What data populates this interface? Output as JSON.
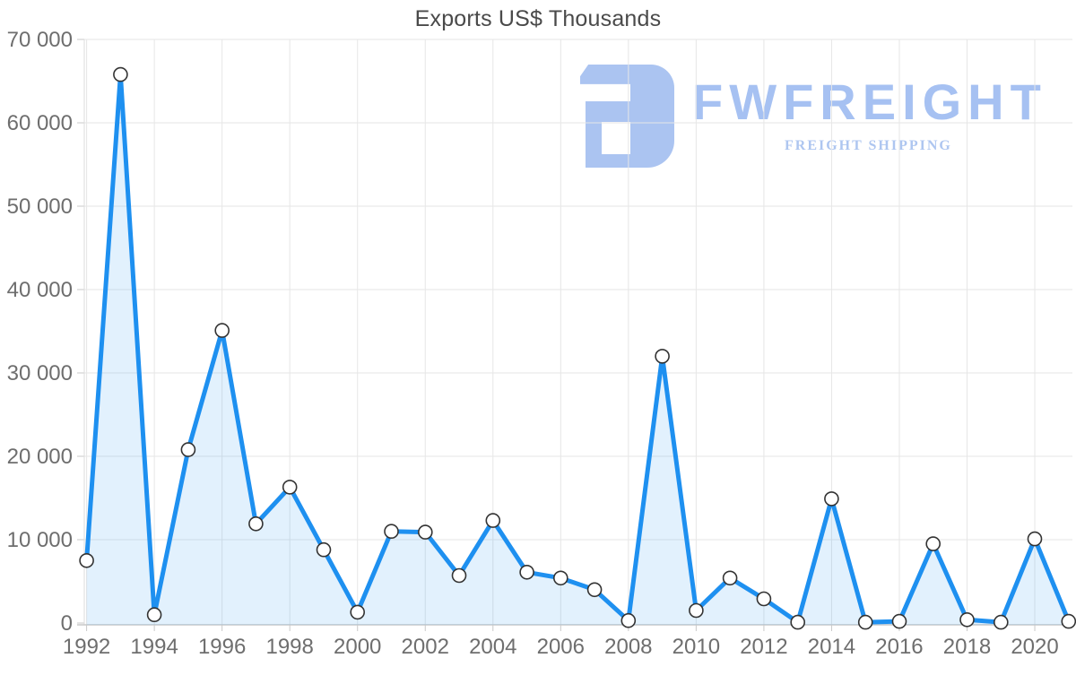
{
  "title": "Exports US$ Thousands",
  "watermark": {
    "brand": "FWFREIGHT",
    "tagline": "FREIGHT SHIPPING",
    "color": "#abc4f1"
  },
  "chart_data": {
    "type": "area",
    "title": "Exports US$ Thousands",
    "xlabel": "",
    "ylabel": "",
    "x": [
      1992,
      1993,
      1994,
      1995,
      1996,
      1997,
      1998,
      1999,
      2000,
      2001,
      2002,
      2003,
      2004,
      2005,
      2006,
      2007,
      2008,
      2009,
      2010,
      2011,
      2012,
      2013,
      2014,
      2015,
      2016,
      2017,
      2018,
      2019,
      2020,
      2021
    ],
    "values": [
      7500,
      65800,
      1000,
      20800,
      35100,
      11900,
      16300,
      8800,
      1300,
      11000,
      10900,
      5700,
      12300,
      6100,
      5400,
      4000,
      300,
      32000,
      1500,
      5400,
      2900,
      100,
      14900,
      100,
      200,
      9500,
      400,
      100,
      10100,
      200
    ],
    "ylim": [
      0,
      70000
    ],
    "y_ticks": [
      0,
      10000,
      20000,
      30000,
      40000,
      50000,
      60000,
      70000
    ],
    "y_tick_labels": [
      "0",
      "10 000",
      "20 000",
      "30 000",
      "40 000",
      "50 000",
      "60 000",
      "70 000"
    ],
    "x_ticks": [
      1992,
      1994,
      1996,
      1998,
      2000,
      2002,
      2004,
      2006,
      2008,
      2010,
      2012,
      2014,
      2016,
      2018,
      2020
    ],
    "x_tick_labels": [
      "1992",
      "1994",
      "1996",
      "1998",
      "2000",
      "2002",
      "2004",
      "2006",
      "2008",
      "2010",
      "2012",
      "2014",
      "2016",
      "2018",
      "2020"
    ],
    "grid": true,
    "legend": "none",
    "line_color": "#1e90f0",
    "fill_color": "rgba(33,150,243,0.13)",
    "marker_fill": "#ffffff",
    "marker_stroke": "#333333",
    "grid_color": "#e6e6e6",
    "axis_color": "#c9c9c9",
    "tick_label_color": "#6e6e6e"
  }
}
